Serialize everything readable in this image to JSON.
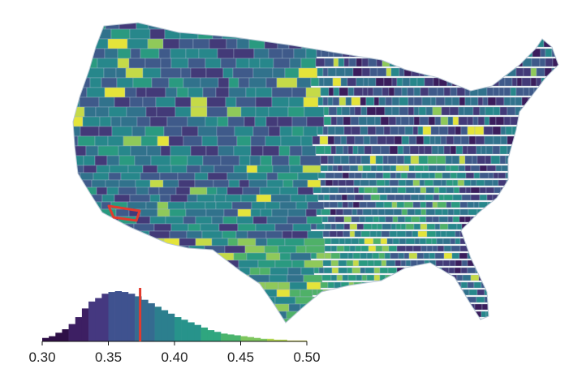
{
  "map": {
    "fill_palette": [
      "#3b1d5c",
      "#433a78",
      "#3f5a8a",
      "#31728c",
      "#27878b",
      "#2a9a80",
      "#4fb168",
      "#8fc95a",
      "#c5da48",
      "#e4e43a"
    ],
    "border_color": "#9fb4c8",
    "highlight_color": "#e23b2e"
  },
  "chart_data": {
    "type": "bar",
    "x_ticks": [
      "0.30",
      "0.35",
      "0.40",
      "0.45",
      "0.50"
    ],
    "xlim": [
      0.3,
      0.5
    ],
    "bin_width": 0.005,
    "bins_start": [
      0.3,
      0.305,
      0.31,
      0.315,
      0.32,
      0.325,
      0.33,
      0.335,
      0.34,
      0.345,
      0.35,
      0.355,
      0.36,
      0.365,
      0.37,
      0.375,
      0.38,
      0.385,
      0.39,
      0.395,
      0.4,
      0.405,
      0.41,
      0.415,
      0.42,
      0.425,
      0.43,
      0.435,
      0.44,
      0.445,
      0.45,
      0.455,
      0.46,
      0.465,
      0.47,
      0.475,
      0.48,
      0.485,
      0.49,
      0.495
    ],
    "counts": [
      4,
      6,
      10,
      14,
      20,
      28,
      38,
      46,
      50,
      55,
      57,
      58,
      57,
      55,
      52,
      48,
      44,
      40,
      36,
      32,
      28,
      25,
      22,
      19,
      16,
      13,
      11,
      9,
      8,
      7,
      6,
      5,
      4,
      3,
      3,
      2,
      2,
      1,
      1,
      1
    ],
    "marker_value": 0.374,
    "colors": [
      "#2e0f47",
      "#3d1f63",
      "#453880",
      "#3f528f",
      "#356b90",
      "#2c7f8e",
      "#27938b",
      "#2fa67f",
      "#4ab46d",
      "#7ec65e",
      "#b2d54f",
      "#dbe142"
    ],
    "marker_color": "#e23b2e"
  }
}
